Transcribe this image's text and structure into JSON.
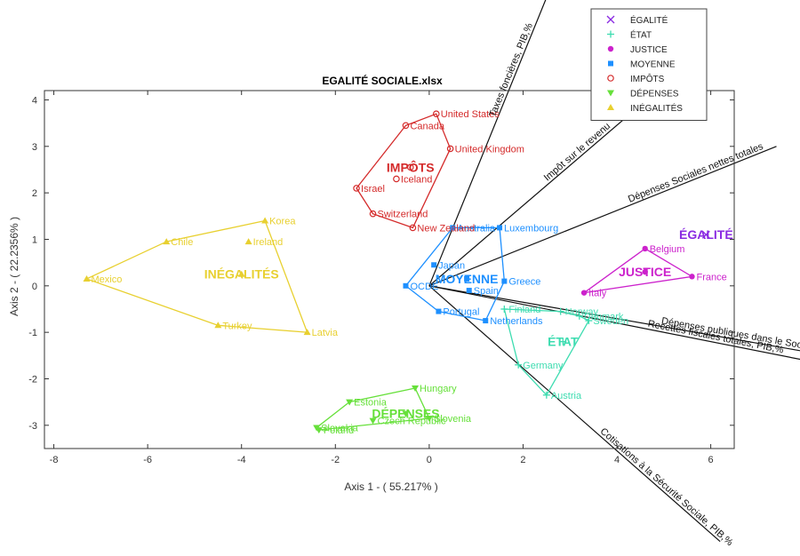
{
  "chart_data": {
    "type": "scatter",
    "title": "EGALITÉ SOCIALE.xlsx",
    "xlabel": "Axis 1 - ( 55.217% )",
    "ylabel": "Axis 2 - ( 22.2356% )",
    "xlim": [
      -8.2,
      6.5
    ],
    "ylim": [
      -3.5,
      4.2
    ],
    "xticks": [
      -8,
      -6,
      -4,
      -2,
      0,
      2,
      4,
      6
    ],
    "yticks": [
      -3,
      -2,
      -1,
      0,
      1,
      2,
      3,
      4
    ],
    "grid": false,
    "legend_position": "top-right",
    "groups": [
      {
        "name": "ÉGALITÉ",
        "color": "#8a2be2",
        "marker": "x",
        "centroid": {
          "label": "ÉGALITÉ",
          "x": 5.9,
          "y": 1.1
        },
        "points": []
      },
      {
        "name": "ÉTAT",
        "color": "#3ddcb0",
        "marker": "+",
        "centroid": {
          "label": "ÉTAT",
          "x": 2.85,
          "y": -1.2
        },
        "points": [
          {
            "label": "Austria",
            "x": 2.5,
            "y": -2.35
          },
          {
            "label": "Germany",
            "x": 1.9,
            "y": -1.7
          },
          {
            "label": "Sweden",
            "x": 3.4,
            "y": -0.75
          },
          {
            "label": "Norway",
            "x": 2.8,
            "y": -0.55
          },
          {
            "label": "Denmark",
            "x": 3.2,
            "y": -0.65
          },
          {
            "label": "Finland",
            "x": 1.6,
            "y": -0.5
          }
        ]
      },
      {
        "name": "JUSTICE",
        "color": "#cc22cc",
        "marker": "*",
        "centroid": {
          "label": "JUSTICE",
          "x": 4.6,
          "y": 0.3
        },
        "points": [
          {
            "label": "Belgium",
            "x": 4.6,
            "y": 0.8
          },
          {
            "label": "France",
            "x": 5.6,
            "y": 0.2
          },
          {
            "label": "Italy",
            "x": 3.3,
            "y": -0.15
          }
        ]
      },
      {
        "name": "MOYENNE",
        "color": "#1e90ff",
        "marker": "s",
        "centroid": {
          "label": "MOYENNE",
          "x": 0.8,
          "y": 0.15
        },
        "points": [
          {
            "label": "Luxembourg",
            "x": 1.5,
            "y": 1.25
          },
          {
            "label": "Australia",
            "x": 0.5,
            "y": 1.25
          },
          {
            "label": "Japan",
            "x": 0.1,
            "y": 0.45
          },
          {
            "label": "OCDE",
            "x": -0.5,
            "y": 0.0
          },
          {
            "label": "Greece",
            "x": 1.6,
            "y": 0.1
          },
          {
            "label": "Spain",
            "x": 0.85,
            "y": -0.1
          },
          {
            "label": "Portugal",
            "x": 0.2,
            "y": -0.55
          },
          {
            "label": "Netherlands",
            "x": 1.2,
            "y": -0.75
          }
        ]
      },
      {
        "name": "IMPÔTS",
        "color": "#d42a2a",
        "marker": "o",
        "centroid": {
          "label": "IMPÔTS",
          "x": -0.4,
          "y": 2.55
        },
        "points": [
          {
            "label": "United States",
            "x": 0.15,
            "y": 3.7
          },
          {
            "label": "Canada",
            "x": -0.5,
            "y": 3.45
          },
          {
            "label": "United Kingdom",
            "x": 0.45,
            "y": 2.95
          },
          {
            "label": "Iceland",
            "x": -0.7,
            "y": 2.3
          },
          {
            "label": "Israel",
            "x": -1.55,
            "y": 2.1
          },
          {
            "label": "Switzerland",
            "x": -1.2,
            "y": 1.55
          },
          {
            "label": "New Zealand",
            "x": -0.35,
            "y": 1.25
          }
        ]
      },
      {
        "name": "DÉPENSES",
        "color": "#66e03a",
        "marker": "v",
        "centroid": {
          "label": "DÉPENSES",
          "x": -0.5,
          "y": -2.75
        },
        "points": [
          {
            "label": "Hungary",
            "x": -0.3,
            "y": -2.2
          },
          {
            "label": "Estonia",
            "x": -1.7,
            "y": -2.5
          },
          {
            "label": "Slovakia",
            "x": -2.4,
            "y": -3.05
          },
          {
            "label": "Poland",
            "x": -2.35,
            "y": -3.1
          },
          {
            "label": "Czech Republic",
            "x": -1.2,
            "y": -2.9
          },
          {
            "label": "Slovenia",
            "x": 0.0,
            "y": -2.85
          }
        ]
      },
      {
        "name": "INÉGALITÉS",
        "color": "#e8d030",
        "marker": "^",
        "centroid": {
          "label": "INÉGALITÉS",
          "x": -4.0,
          "y": 0.25
        },
        "points": [
          {
            "label": "Korea",
            "x": -3.5,
            "y": 1.4
          },
          {
            "label": "Chile",
            "x": -5.6,
            "y": 0.95
          },
          {
            "label": "Ireland",
            "x": -3.85,
            "y": 0.95
          },
          {
            "label": "Mexico",
            "x": -7.3,
            "y": 0.15
          },
          {
            "label": "Turkey",
            "x": -4.5,
            "y": -0.85
          },
          {
            "label": "Latvia",
            "x": -2.6,
            "y": -1.0
          }
        ]
      }
    ],
    "variables": [
      {
        "label": "Taxes foncières, PIB,%",
        "x": 2.5,
        "y": 6.2
      },
      {
        "label": "Impôt sur le revenu",
        "x": 4.4,
        "y": 3.8
      },
      {
        "label": "Dépenses Sociales nettes totales",
        "x": 7.4,
        "y": 3.0
      },
      {
        "label": "Dépenses publiques dans le Social",
        "x": 8.5,
        "y": -1.5
      },
      {
        "label": "Recettes fiscales totales, PIB,%",
        "x": 8.0,
        "y": -1.6
      },
      {
        "label": "Cotisations à la Sécurité Sociale, PIB,%",
        "x": 6.2,
        "y": -5.5
      }
    ]
  }
}
